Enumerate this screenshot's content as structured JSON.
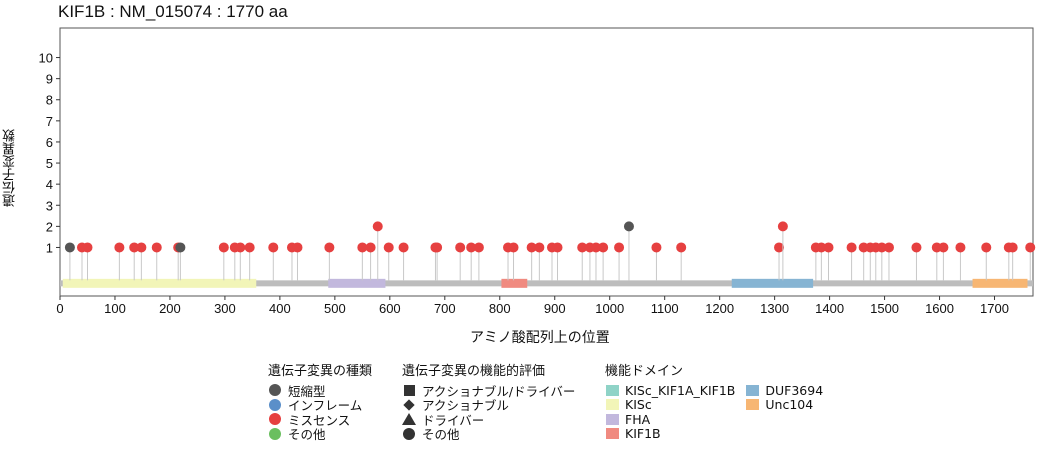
{
  "chart_data": {
    "type": "lollipop",
    "title": "KIF1B : NM_015074 : 1770 aa",
    "xlabel": "アミノ酸配列上の位置",
    "ylabel": "遺伝子変異数",
    "xlim": [
      0,
      1770
    ],
    "ylim": [
      -1.3,
      11.4
    ],
    "xticks": [
      0,
      100,
      200,
      300,
      400,
      500,
      600,
      700,
      800,
      900,
      1000,
      1100,
      1200,
      1300,
      1400,
      1500,
      1600,
      1700
    ],
    "yticks": [
      1,
      2,
      3,
      4,
      5,
      6,
      7,
      8,
      9,
      10
    ],
    "protein_length": 1770,
    "domains": [
      {
        "name": "KISc",
        "start": 5,
        "end": 357,
        "color": "#f2f5b8"
      },
      {
        "name": "FHA",
        "start": 488,
        "end": 592,
        "color": "#c2b8dd"
      },
      {
        "name": "KIF1B",
        "start": 803,
        "end": 850,
        "color": "#f08a80"
      },
      {
        "name": "DUF3694",
        "start": 1222,
        "end": 1370,
        "color": "#86b4d3"
      },
      {
        "name": "Unc104",
        "start": 1660,
        "end": 1760,
        "color": "#f7b673"
      }
    ],
    "mutations": [
      {
        "pos": 18,
        "count": 1,
        "type": "truncating"
      },
      {
        "pos": 40,
        "count": 1,
        "type": "missense"
      },
      {
        "pos": 50,
        "count": 1,
        "type": "missense"
      },
      {
        "pos": 108,
        "count": 1,
        "type": "missense"
      },
      {
        "pos": 135,
        "count": 1,
        "type": "missense"
      },
      {
        "pos": 148,
        "count": 1,
        "type": "missense"
      },
      {
        "pos": 176,
        "count": 1,
        "type": "missense"
      },
      {
        "pos": 215,
        "count": 1,
        "type": "missense"
      },
      {
        "pos": 219,
        "count": 1,
        "type": "truncating"
      },
      {
        "pos": 298,
        "count": 1,
        "type": "missense"
      },
      {
        "pos": 318,
        "count": 1,
        "type": "missense"
      },
      {
        "pos": 328,
        "count": 1,
        "type": "missense"
      },
      {
        "pos": 345,
        "count": 1,
        "type": "missense"
      },
      {
        "pos": 388,
        "count": 1,
        "type": "missense"
      },
      {
        "pos": 422,
        "count": 1,
        "type": "missense"
      },
      {
        "pos": 432,
        "count": 1,
        "type": "missense"
      },
      {
        "pos": 490,
        "count": 1,
        "type": "missense"
      },
      {
        "pos": 550,
        "count": 1,
        "type": "missense"
      },
      {
        "pos": 565,
        "count": 1,
        "type": "missense"
      },
      {
        "pos": 578,
        "count": 2,
        "type": "missense"
      },
      {
        "pos": 598,
        "count": 1,
        "type": "missense"
      },
      {
        "pos": 625,
        "count": 1,
        "type": "missense"
      },
      {
        "pos": 683,
        "count": 1,
        "type": "missense"
      },
      {
        "pos": 686,
        "count": 1,
        "type": "missense"
      },
      {
        "pos": 728,
        "count": 1,
        "type": "missense"
      },
      {
        "pos": 748,
        "count": 1,
        "type": "missense"
      },
      {
        "pos": 762,
        "count": 1,
        "type": "missense"
      },
      {
        "pos": 815,
        "count": 1,
        "type": "missense"
      },
      {
        "pos": 825,
        "count": 1,
        "type": "missense"
      },
      {
        "pos": 858,
        "count": 1,
        "type": "missense"
      },
      {
        "pos": 872,
        "count": 1,
        "type": "missense"
      },
      {
        "pos": 895,
        "count": 1,
        "type": "missense"
      },
      {
        "pos": 905,
        "count": 1,
        "type": "missense"
      },
      {
        "pos": 950,
        "count": 1,
        "type": "missense"
      },
      {
        "pos": 964,
        "count": 1,
        "type": "missense"
      },
      {
        "pos": 975,
        "count": 1,
        "type": "missense"
      },
      {
        "pos": 988,
        "count": 1,
        "type": "missense"
      },
      {
        "pos": 1017,
        "count": 1,
        "type": "missense"
      },
      {
        "pos": 1035,
        "count": 2,
        "type": "truncating"
      },
      {
        "pos": 1085,
        "count": 1,
        "type": "missense"
      },
      {
        "pos": 1130,
        "count": 1,
        "type": "missense"
      },
      {
        "pos": 1308,
        "count": 1,
        "type": "missense"
      },
      {
        "pos": 1315,
        "count": 2,
        "type": "missense"
      },
      {
        "pos": 1375,
        "count": 1,
        "type": "missense"
      },
      {
        "pos": 1385,
        "count": 1,
        "type": "missense"
      },
      {
        "pos": 1398,
        "count": 1,
        "type": "missense"
      },
      {
        "pos": 1440,
        "count": 1,
        "type": "missense"
      },
      {
        "pos": 1462,
        "count": 1,
        "type": "missense"
      },
      {
        "pos": 1474,
        "count": 1,
        "type": "missense"
      },
      {
        "pos": 1484,
        "count": 1,
        "type": "missense"
      },
      {
        "pos": 1495,
        "count": 1,
        "type": "missense"
      },
      {
        "pos": 1508,
        "count": 1,
        "type": "missense"
      },
      {
        "pos": 1558,
        "count": 1,
        "type": "missense"
      },
      {
        "pos": 1595,
        "count": 1,
        "type": "missense"
      },
      {
        "pos": 1607,
        "count": 1,
        "type": "missense"
      },
      {
        "pos": 1638,
        "count": 1,
        "type": "missense"
      },
      {
        "pos": 1685,
        "count": 1,
        "type": "missense"
      },
      {
        "pos": 1726,
        "count": 1,
        "type": "missense"
      },
      {
        "pos": 1733,
        "count": 1,
        "type": "missense"
      },
      {
        "pos": 1765,
        "count": 1,
        "type": "missense"
      }
    ],
    "colors": {
      "truncating": "#555555",
      "inframe": "#5b8fc9",
      "missense": "#e64040",
      "other": "#6abf5f",
      "backbone": "#bdbdbd",
      "stem": "#c8c8c8"
    }
  },
  "legend_type": {
    "title": "遺伝子変異の種類",
    "items": [
      {
        "label": "短縮型",
        "color": "#555555"
      },
      {
        "label": "インフレーム",
        "color": "#5b8fc9"
      },
      {
        "label": "ミスセンス",
        "color": "#e64040"
      },
      {
        "label": "その他",
        "color": "#6abf5f"
      }
    ]
  },
  "legend_func": {
    "title": "遺伝子変異の機能的評価",
    "items": [
      {
        "label": "アクショナブル/ドライバー",
        "shape": "square"
      },
      {
        "label": "アクショナブル",
        "shape": "diamond"
      },
      {
        "label": "ドライバー",
        "shape": "triangle"
      },
      {
        "label": "その他",
        "shape": "circle"
      }
    ]
  },
  "legend_domain": {
    "title": "機能ドメイン",
    "col1": [
      {
        "label": "KISc_KIF1A_KIF1B",
        "color": "#8fd3c7"
      },
      {
        "label": "KISc",
        "color": "#f2f5b8"
      },
      {
        "label": "FHA",
        "color": "#c2b8dd"
      },
      {
        "label": "KIF1B",
        "color": "#f08a80"
      }
    ],
    "col2": [
      {
        "label": "DUF3694",
        "color": "#86b4d3"
      },
      {
        "label": "Unc104",
        "color": "#f7b673"
      }
    ]
  }
}
